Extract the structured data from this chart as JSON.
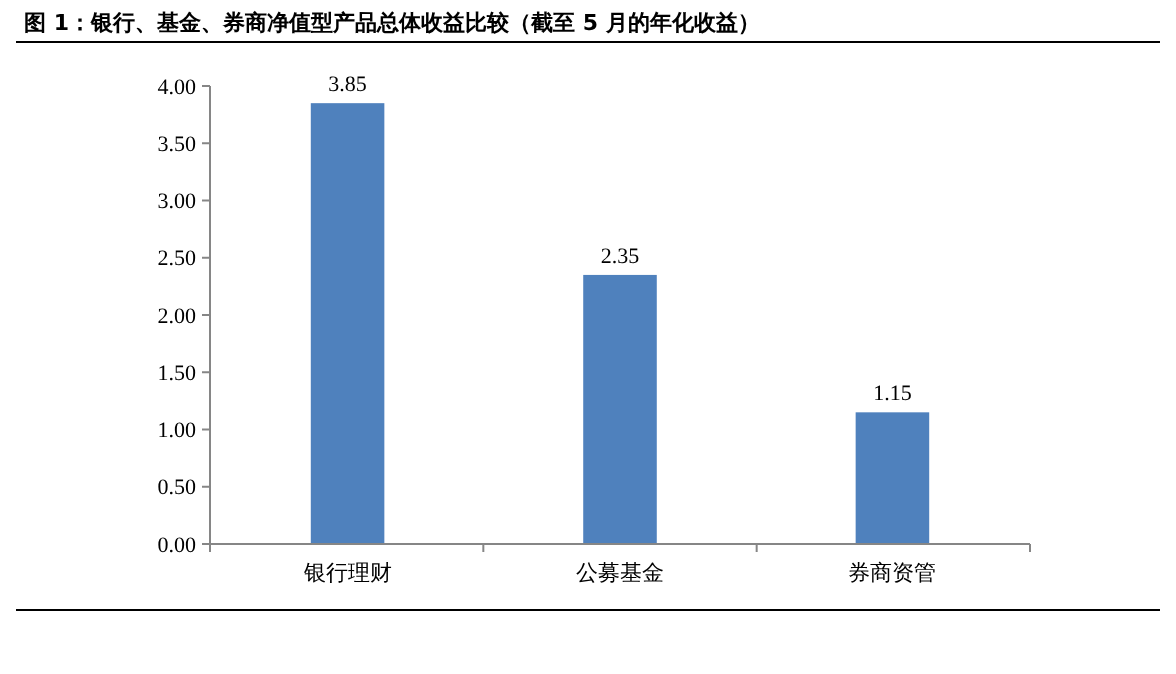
{
  "chart_data": {
    "type": "bar",
    "title": "图 1：银行、基金、券商净值型产品总体收益比较（截至 5 月的年化收益）",
    "categories": [
      "银行理财",
      "公募基金",
      "券商资管"
    ],
    "values": [
      3.85,
      2.35,
      1.15
    ],
    "color": "#4f81bd",
    "ylim": [
      0,
      4
    ],
    "yticks": [
      {
        "value": 0,
        "label": "0.00"
      },
      {
        "value": 0.5,
        "label": "0.50"
      },
      {
        "value": 1,
        "label": "1.00"
      },
      {
        "value": 1.5,
        "label": "1.50"
      },
      {
        "value": 2,
        "label": "2.00"
      },
      {
        "value": 2.5,
        "label": "2.50"
      },
      {
        "value": 3,
        "label": "3.00"
      },
      {
        "value": 3.5,
        "label": "3.50"
      },
      {
        "value": 4,
        "label": "4.00"
      }
    ],
    "data_labels": true
  }
}
